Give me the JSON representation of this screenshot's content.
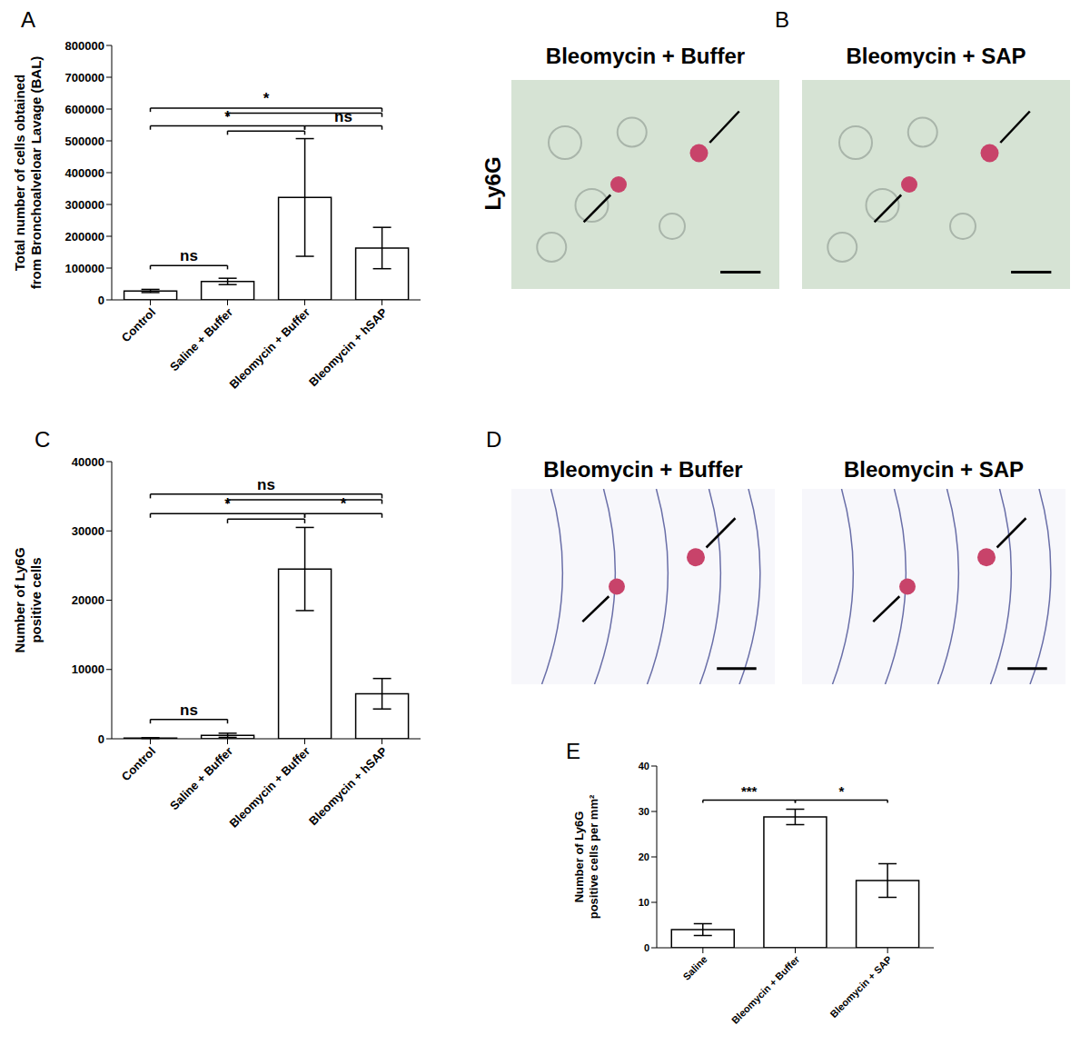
{
  "chart_data": [
    {
      "panel": "A",
      "type": "bar",
      "categories": [
        "Control",
        "Saline + Buffer",
        "Bleomycin + Buffer",
        "Bleomycin + hSAP"
      ],
      "values": [
        28000,
        58000,
        322000,
        163000
      ],
      "errors": [
        5000,
        10000,
        185000,
        65000
      ],
      "color": "#ffffff",
      "ylabel": [
        "Total number of cells obtained",
        "from Bronchoalveloar Lavage (BAL)"
      ],
      "ylim": [
        0,
        800000
      ],
      "yticks": [
        0,
        100000,
        200000,
        300000,
        400000,
        500000,
        600000,
        700000,
        800000
      ],
      "annotations": [
        {
          "pairs": [
            [
              "Control",
              "Saline + Buffer"
            ]
          ],
          "text": "ns"
        },
        {
          "pairs": [
            [
              "Bleomycin + Buffer",
              "Bleomycin + hSAP"
            ]
          ],
          "text": "ns"
        },
        {
          "pairs": [
            [
              "Control",
              "Bleomycin + Buffer"
            ],
            [
              "Saline + Buffer",
              "Bleomycin + Buffer"
            ]
          ],
          "text": "*"
        },
        {
          "pairs": [
            [
              "Control",
              "Bleomycin + hSAP"
            ],
            [
              "Saline + Buffer",
              "Bleomycin + hSAP"
            ]
          ],
          "text": "*"
        }
      ]
    },
    {
      "panel": "C",
      "type": "bar",
      "categories": [
        "Control",
        "Saline + Buffer",
        "Bleomycin + Buffer",
        "Bleomycin + hSAP"
      ],
      "values": [
        100,
        500,
        24500,
        6500
      ],
      "errors": [
        50,
        300,
        6000,
        2200
      ],
      "color": "#ffffff",
      "ylabel": [
        "Number of Ly6G",
        "positive cells"
      ],
      "ylim": [
        0,
        40000
      ],
      "yticks": [
        0,
        10000,
        20000,
        30000,
        40000
      ],
      "annotations": [
        {
          "pairs": [
            [
              "Control",
              "Saline + Buffer"
            ]
          ],
          "text": "ns"
        },
        {
          "pairs": [
            [
              "Control",
              "Bleomycin + Buffer"
            ],
            [
              "Saline + Buffer",
              "Bleomycin + Buffer"
            ]
          ],
          "text": "*"
        },
        {
          "pairs": [
            [
              "Bleomycin + Buffer",
              "Bleomycin + hSAP"
            ]
          ],
          "text": "*"
        },
        {
          "pairs": [
            [
              "Control",
              "Bleomycin + hSAP"
            ],
            [
              "Saline + Buffer",
              "Bleomycin + hSAP"
            ]
          ],
          "text": "ns"
        }
      ]
    },
    {
      "panel": "E",
      "type": "bar",
      "categories": [
        "Saline",
        "Bleomycin + Buffer",
        "Bleomycin + SAP"
      ],
      "values": [
        4,
        28.8,
        14.8
      ],
      "errors": [
        1.3,
        1.7,
        3.7
      ],
      "color": "#ffffff",
      "ylabel": [
        "Number of Ly6G",
        "positive cells per mm²"
      ],
      "ylim": [
        0,
        40
      ],
      "yticks": [
        0,
        10,
        20,
        30,
        40
      ],
      "annotations": [
        {
          "pairs": [
            [
              "Saline",
              "Bleomycin + Buffer"
            ]
          ],
          "text": "***"
        },
        {
          "pairs": [
            [
              "Bleomycin + Buffer",
              "Bleomycin + SAP"
            ]
          ],
          "text": "*"
        }
      ]
    }
  ],
  "images": [
    {
      "panel": "B",
      "row_label": "Ly6G",
      "titles": [
        "Bleomycin + Buffer",
        "Bleomycin + SAP"
      ]
    },
    {
      "panel": "D",
      "titles": [
        "Bleomycin + Buffer",
        "Bleomycin + SAP"
      ]
    }
  ]
}
